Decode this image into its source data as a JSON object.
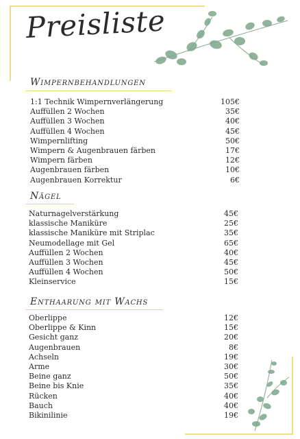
{
  "title": "Preisliste",
  "colors": {
    "accent": "#f0d67c",
    "leaf": "#7da88a"
  },
  "sections": [
    {
      "heading": "Wimpernbehandlungen",
      "items": [
        {
          "name": "1:1 Technik Wimpernverlängerung",
          "price": "105€"
        },
        {
          "name": "Auffüllen 2 Wochen",
          "price": "35€"
        },
        {
          "name": "Auffüllen 3 Wochen",
          "price": "40€"
        },
        {
          "name": "Auffüllen 4 Wochen",
          "price": "45€"
        },
        {
          "name": "Wimpernlifting",
          "price": "50€"
        },
        {
          "name": "Wimpern & Augenbrauen färben",
          "price": "17€"
        },
        {
          "name": "Wimpern färben",
          "price": "12€"
        },
        {
          "name": "Augenbrauen färben",
          "price": "10€"
        },
        {
          "name": "Augenbrauen Korrektur",
          "price": "6€"
        }
      ]
    },
    {
      "heading": "Nägel",
      "items": [
        {
          "name": "Naturnagelverstärkung",
          "price": "45€"
        },
        {
          "name": "klassische Maniküre",
          "price": "25€"
        },
        {
          "name": "klassische Maniküre mit Striplac",
          "price": "35€"
        },
        {
          "name": "Neumodellage mit Gel",
          "price": "65€"
        },
        {
          "name": "Auffüllen 2 Wochen",
          "price": "40€"
        },
        {
          "name": "Auffüllen 3 Wochen",
          "price": "45€"
        },
        {
          "name": "Auffüllen 4 Wochen",
          "price": "50€"
        },
        {
          "name": "Kleinservice",
          "price": "15€"
        }
      ]
    },
    {
      "heading": "Enthaarung mit Wachs",
      "items": [
        {
          "name": "Oberlippe",
          "price": "12€"
        },
        {
          "name": "Oberlippe & Kinn",
          "price": "15€"
        },
        {
          "name": "Gesicht ganz",
          "price": "20€"
        },
        {
          "name": "Augenbrauen",
          "price": "8€"
        },
        {
          "name": "Achseln",
          "price": "19€"
        },
        {
          "name": "Arme",
          "price": "30€"
        },
        {
          "name": "Beine ganz",
          "price": "50€"
        },
        {
          "name": "Beine bis Knie",
          "price": "35€"
        },
        {
          "name": "Rücken",
          "price": "40€"
        },
        {
          "name": "Bauch",
          "price": "40€"
        },
        {
          "name": "Bikinilinie",
          "price": "19€"
        }
      ]
    }
  ]
}
